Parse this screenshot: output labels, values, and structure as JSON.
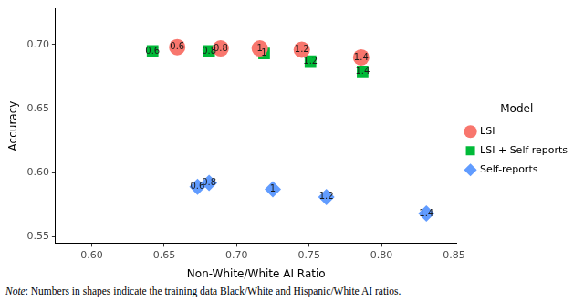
{
  "chart_data": {
    "type": "scatter",
    "x_label": "Non-White/White AI Ratio",
    "y_label": "Accuracy",
    "legend": "right",
    "legend_title": "Model",
    "grid": false,
    "xlim": [
      0.575,
      0.852
    ],
    "xticks": [
      {
        "value": 0.6,
        "label": "0.60"
      },
      0.65,
      {
        "value": 0.7,
        "label": "0.70"
      },
      0.75,
      {
        "value": 0.8,
        "label": "0.80"
      },
      0.85
    ],
    "ylim": [
      0.545,
      0.728
    ],
    "yticks": [
      0.55,
      {
        "value": 0.6,
        "label": "0.60"
      },
      0.65,
      {
        "value": 0.7,
        "label": "0.70"
      }
    ],
    "series": [
      {
        "name": "LSI",
        "color": "#F8766D",
        "marker": "circle",
        "x": [
          0.659,
          0.689,
          0.716,
          0.745,
          0.786
        ],
        "values": [
          0.698,
          0.697,
          0.697,
          0.696,
          0.69
        ],
        "labels": [
          "0.6",
          "0.8",
          "1",
          "1.2",
          "1.4"
        ]
      },
      {
        "name": "LSI + Self-reports",
        "color": "#00BA38",
        "marker": "square",
        "x": [
          0.642,
          0.681,
          0.719,
          0.751,
          0.787
        ],
        "values": [
          0.695,
          0.695,
          0.693,
          0.687,
          0.679
        ],
        "labels": [
          "0.6",
          "0.8",
          "1",
          "1.2",
          "1.4"
        ]
      },
      {
        "name": "Self-reports",
        "color": "#619CFF",
        "marker": "diamond",
        "x": [
          0.673,
          0.681,
          0.725,
          0.762,
          0.831
        ],
        "values": [
          0.589,
          0.592,
          0.587,
          0.581,
          0.568
        ],
        "labels": [
          "0.6",
          "0.8",
          "1",
          "1.2",
          "1.4"
        ]
      }
    ],
    "note": "Note: Numbers in shapes indicate the training data Black/White and Hispanic/White AI ratios."
  }
}
